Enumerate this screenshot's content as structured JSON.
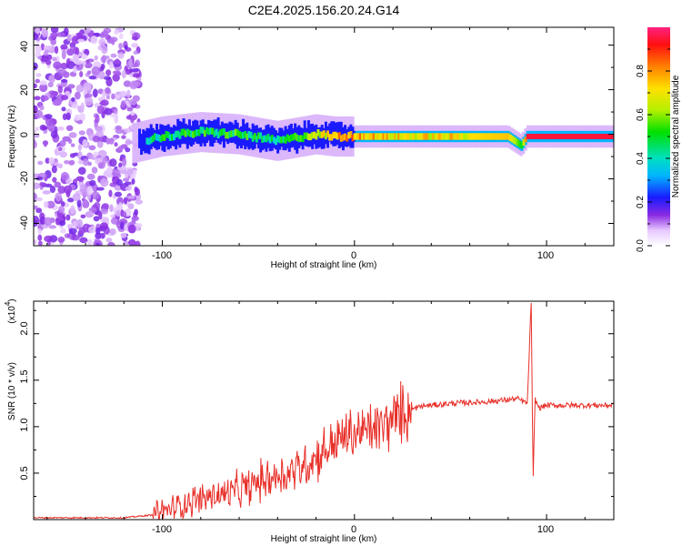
{
  "title": "C2E4.2025.156.20.24.G14",
  "chart_data": [
    {
      "type": "heatmap",
      "xlabel": "Height of straight line (km)",
      "ylabel": "Frequency (Hz)",
      "xlim": [
        -167,
        135
      ],
      "ylim": [
        -50,
        48
      ],
      "xticks": [
        "-100",
        "0",
        "100"
      ],
      "yticks": [
        "-40",
        "-20",
        "0",
        "20",
        "40"
      ],
      "ridge": {
        "description_points_x": [
          -115,
          -100,
          -80,
          -60,
          -40,
          -20,
          -10,
          0,
          20,
          50,
          80,
          87,
          90,
          100,
          120,
          135
        ],
        "freq_hz": [
          -4,
          -1,
          1,
          0,
          -3,
          0,
          -1,
          -1,
          -1,
          -1,
          -1,
          -5,
          -1,
          -1,
          -1,
          -1
        ],
        "amplitude": [
          0.25,
          0.45,
          0.5,
          0.5,
          0.45,
          0.6,
          0.75,
          0.8,
          0.7,
          0.7,
          0.75,
          0.5,
          0.95,
          0.95,
          0.95,
          0.95
        ]
      },
      "colorbar": {
        "label": "Normalized spectral amplitude",
        "range": [
          0,
          1
        ],
        "ticks": [
          "0.0",
          "0.2",
          "0.4",
          "0.6",
          "0.8"
        ]
      }
    },
    {
      "type": "line",
      "xlabel": "Height of straight line (km)",
      "ylabel": "SNR (10 * v/v)",
      "y_multiplier": "(x10",
      "y_multiplier_exp": "4",
      "xlim": [
        -167,
        135
      ],
      "ylim": [
        0,
        2.35
      ],
      "xticks": [
        "-100",
        "0",
        "100"
      ],
      "yticks": [
        "0.5",
        "1.0",
        "1.5",
        "2.0"
      ],
      "series": [
        {
          "color": "#e8302a",
          "x": [
            -167,
            -120,
            -105,
            -95,
            -85,
            -75,
            -65,
            -55,
            -45,
            -35,
            -25,
            -15,
            -5,
            5,
            15,
            25,
            35,
            50,
            70,
            85,
            90,
            92,
            93,
            94,
            96,
            100,
            120,
            135
          ],
          "y": [
            0.02,
            0.02,
            0.05,
            0.12,
            0.2,
            0.25,
            0.28,
            0.35,
            0.45,
            0.5,
            0.6,
            0.75,
            0.9,
            0.95,
            1.0,
            1.15,
            1.22,
            1.25,
            1.27,
            1.3,
            1.25,
            2.35,
            0.4,
            1.3,
            1.2,
            1.23,
            1.23,
            1.23
          ]
        }
      ]
    }
  ]
}
